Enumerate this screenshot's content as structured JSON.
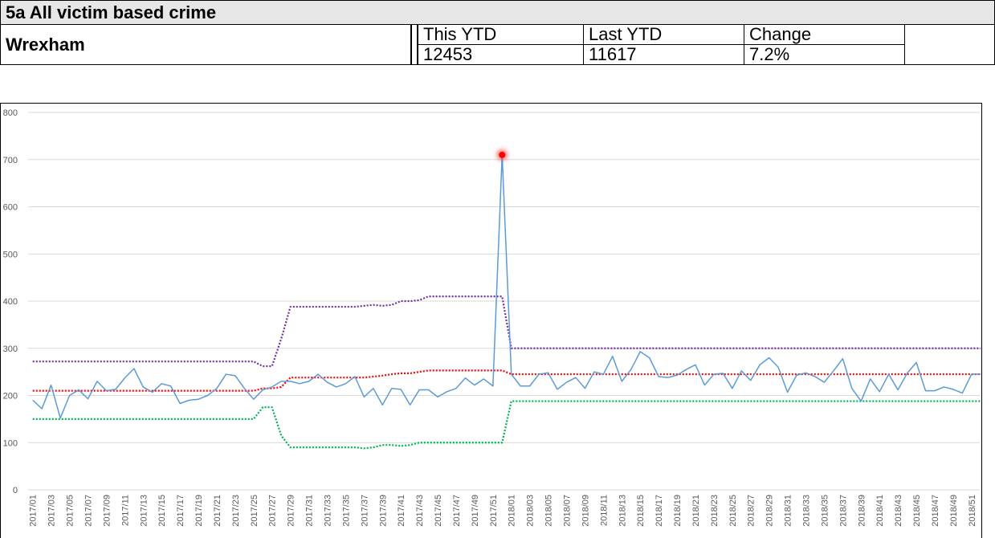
{
  "header": {
    "title": "5a  All victim based crime",
    "area": "Wrexham"
  },
  "summary": {
    "columns": [
      "This YTD",
      "Last YTD",
      "Change"
    ],
    "values": [
      "12453",
      "11617",
      "7.2%"
    ]
  },
  "chart_data": {
    "type": "line",
    "categories": [
      "2017/01",
      null,
      "2017/03",
      null,
      "2017/05",
      null,
      "2017/07",
      null,
      "2017/09",
      null,
      "2017/11",
      null,
      "2017/13",
      null,
      "2017/15",
      null,
      "2017/17",
      null,
      "2017/19",
      null,
      "2017/21",
      null,
      "2017/23",
      null,
      "2017/25",
      null,
      "2017/27",
      null,
      "2017/29",
      null,
      "2017/31",
      null,
      "2017/33",
      null,
      "2017/35",
      null,
      "2017/37",
      null,
      "2017/39",
      null,
      "2017/41",
      null,
      "2017/43",
      null,
      "2017/45",
      null,
      "2017/47",
      null,
      "2017/49",
      null,
      "2017/51",
      null,
      "2018/01",
      null,
      "2018/03",
      null,
      "2018/05",
      null,
      "2018/07",
      null,
      "2018/09",
      null,
      "2018/11",
      null,
      "2018/13",
      null,
      "2018/15",
      null,
      "2018/17",
      null,
      "2018/19",
      null,
      "2018/21",
      null,
      "2018/23",
      null,
      "2018/25",
      null,
      "2018/27",
      null,
      "2018/29",
      null,
      "2018/31",
      null,
      "2018/33",
      null,
      "2018/35",
      null,
      "2018/37",
      null,
      "2018/39",
      null,
      "2018/41",
      null,
      "2018/43",
      null,
      "2018/45",
      null,
      "2018/47",
      null,
      "2018/49",
      null,
      "2018/51",
      null
    ],
    "series": [
      {
        "color": "#5b9bd5",
        "style": "solid",
        "values": [
          190,
          172,
          222,
          152,
          200,
          212,
          193,
          230,
          210,
          213,
          237,
          257,
          218,
          207,
          225,
          220,
          183,
          190,
          192,
          200,
          215,
          245,
          242,
          215,
          192,
          212,
          218,
          230,
          230,
          225,
          230,
          245,
          228,
          218,
          225,
          240,
          197,
          215,
          180,
          215,
          213,
          180,
          212,
          212,
          197,
          208,
          215,
          237,
          222,
          235,
          220,
          710,
          245,
          220,
          220,
          245,
          248,
          213,
          228,
          238,
          215,
          250,
          245,
          283,
          230,
          255,
          293,
          280,
          240,
          238,
          243,
          255,
          265,
          222,
          245,
          247,
          215,
          252,
          232,
          265,
          280,
          260,
          207,
          243,
          248,
          240,
          228,
          252,
          278,
          215,
          188,
          235,
          208,
          245,
          212,
          247,
          270,
          210,
          210,
          218,
          213,
          205,
          245,
          245
        ]
      },
      {
        "color": "#ff0000",
        "style": "dotted",
        "values": [
          210,
          210,
          210,
          210,
          210,
          210,
          210,
          210,
          210,
          210,
          210,
          210,
          210,
          210,
          210,
          210,
          210,
          210,
          210,
          210,
          210,
          210,
          210,
          210,
          210,
          215,
          215,
          218,
          238,
          238,
          238,
          238,
          238,
          238,
          238,
          238,
          238,
          240,
          242,
          245,
          247,
          247,
          250,
          253,
          253,
          253,
          253,
          253,
          253,
          253,
          253,
          253,
          245,
          245,
          245,
          245,
          245,
          245,
          245,
          245,
          245,
          245,
          245,
          245,
          245,
          245,
          245,
          245,
          245,
          245,
          245,
          245,
          245,
          245,
          245,
          245,
          245,
          245,
          245,
          245,
          245,
          245,
          245,
          245,
          245,
          245,
          245,
          245,
          245,
          245,
          245,
          245,
          245,
          245,
          245,
          245,
          245,
          245,
          245,
          245,
          245,
          245,
          245,
          245
        ]
      },
      {
        "color": "#7030a0",
        "style": "dotted",
        "values": [
          272,
          272,
          272,
          272,
          272,
          272,
          272,
          272,
          272,
          272,
          272,
          272,
          272,
          272,
          272,
          272,
          272,
          272,
          272,
          272,
          272,
          272,
          272,
          272,
          272,
          262,
          262,
          320,
          388,
          388,
          388,
          388,
          388,
          388,
          388,
          388,
          390,
          392,
          390,
          392,
          400,
          400,
          402,
          410,
          410,
          410,
          410,
          410,
          410,
          410,
          410,
          410,
          300,
          300,
          300,
          300,
          300,
          300,
          300,
          300,
          300,
          300,
          300,
          300,
          300,
          300,
          300,
          300,
          300,
          300,
          300,
          300,
          300,
          300,
          300,
          300,
          300,
          300,
          300,
          300,
          300,
          300,
          300,
          300,
          300,
          300,
          300,
          300,
          300,
          300,
          300,
          300,
          300,
          300,
          300,
          300,
          300,
          300,
          300,
          300,
          300,
          300,
          300,
          300
        ]
      },
      {
        "color": "#00b050",
        "style": "dotted",
        "values": [
          150,
          150,
          150,
          150,
          150,
          150,
          150,
          150,
          150,
          150,
          150,
          150,
          150,
          150,
          150,
          150,
          150,
          150,
          150,
          150,
          150,
          150,
          150,
          150,
          150,
          175,
          175,
          115,
          90,
          90,
          90,
          90,
          90,
          90,
          90,
          90,
          88,
          90,
          95,
          95,
          93,
          95,
          100,
          100,
          100,
          100,
          100,
          100,
          100,
          100,
          100,
          100,
          188,
          188,
          188,
          188,
          188,
          188,
          188,
          188,
          188,
          188,
          188,
          188,
          188,
          188,
          188,
          188,
          188,
          188,
          188,
          188,
          188,
          188,
          188,
          188,
          188,
          188,
          188,
          188,
          188,
          188,
          188,
          188,
          188,
          188,
          188,
          188,
          188,
          188,
          188,
          188,
          188,
          188,
          188,
          188,
          188,
          188,
          188,
          188,
          188,
          188,
          188,
          188
        ]
      }
    ],
    "highlight": {
      "series": 0,
      "index": 51,
      "color": "#ff0000"
    },
    "ylim": [
      0,
      800
    ],
    "yticks": [
      0,
      100,
      200,
      300,
      400,
      500,
      600,
      700,
      800
    ],
    "grid": true
  }
}
